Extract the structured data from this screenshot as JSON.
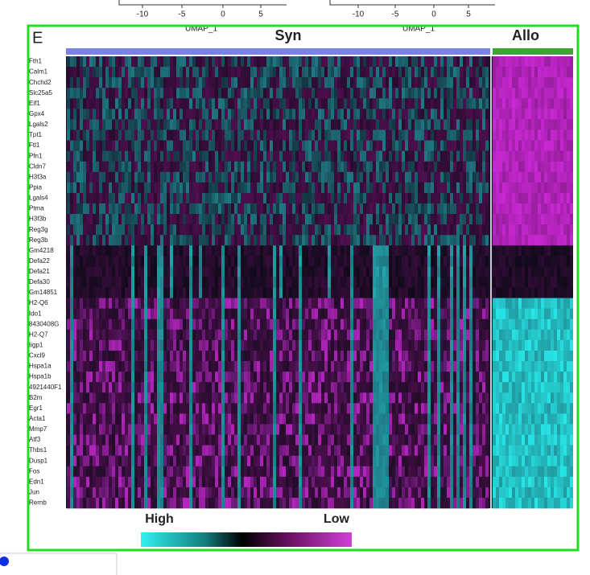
{
  "top_axes": [
    {
      "ticks": [
        "-10",
        "-5",
        "0",
        "5"
      ],
      "label": "UMAP_1"
    },
    {
      "ticks": [
        "-10",
        "-5",
        "0",
        "5"
      ],
      "label": "UMAP_1"
    }
  ],
  "panel": {
    "letter": "E",
    "groups": [
      "Syn",
      "Allo"
    ],
    "genes": [
      "Fth1",
      "Calm1",
      "Chchd2",
      "Slc25a5",
      "Eif1",
      "Gpx4",
      "Lgals2",
      "Tpt1",
      "Ftl1",
      "Pfn1",
      "Cldn7",
      "H3f3a",
      "Ppia",
      "Lgals4",
      "Ptma",
      "H3f3b",
      "Reg3g",
      "Reg3b",
      "Gm4218",
      "Defa22",
      "Defa21",
      "Defa30",
      "Gm14851",
      "H2-Q6",
      "Ido1",
      "8430408G",
      "H2-Q7",
      "Iigp1",
      "Cxcl9",
      "Hspa1a",
      "Hspa1b",
      "4921440F1",
      "B2m",
      "Egr1",
      "Acta1",
      "Mmp7",
      "Atf3",
      "Thbs1",
      "Dusp1",
      "Fos",
      "Edn1",
      "Jun",
      "Rernb"
    ],
    "legend": {
      "high": "High",
      "low": "Low"
    }
  }
}
